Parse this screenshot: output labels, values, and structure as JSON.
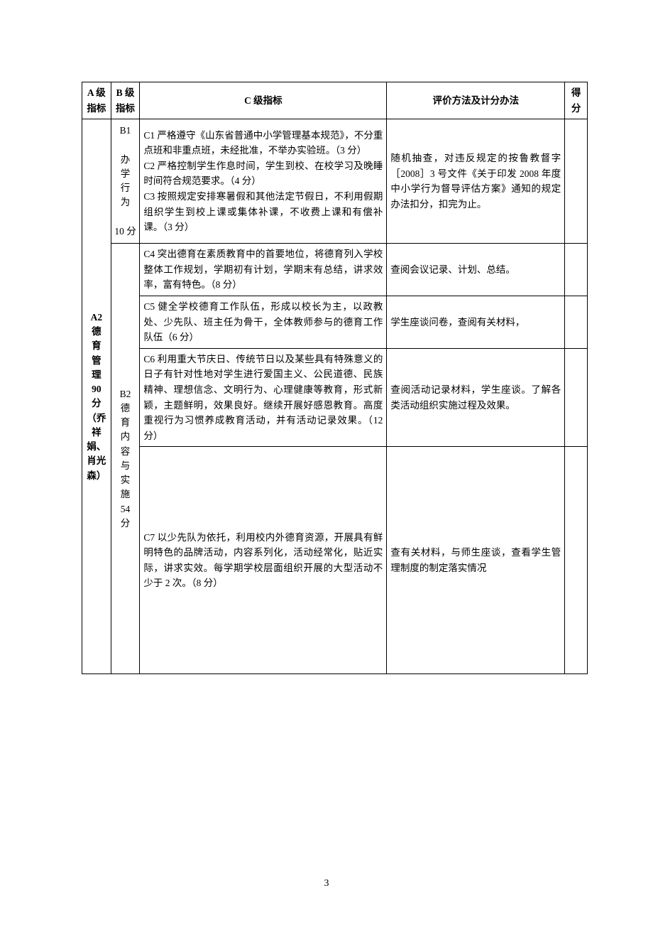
{
  "table": {
    "headers": {
      "colA": "A 级指标",
      "colB": "B 级指标",
      "colC": "C 级指标",
      "colD": "评价方法及计分办法",
      "colE": "得分"
    },
    "colA_label_lines": [
      "A2",
      "德",
      "育",
      "管",
      "理",
      "90",
      "分",
      "（乔",
      "祥娟、",
      "肖光",
      "森）"
    ],
    "colB1_lines": [
      "B1",
      "",
      "办",
      "学",
      "行",
      "为",
      "",
      "10 分"
    ],
    "colB2_lines": [
      "B2",
      "德",
      "育",
      "内",
      "容",
      "与",
      "实",
      "施",
      "54",
      "分"
    ],
    "rows": [
      {
        "c": "C1 严格遵守《山东省普通中小学管理基本规范》，不分重点班和非重点班，未经批准，不举办实验班。（3 分）\nC2 严格控制学生作息时间，学生到校、在校学习及晚睡时间符合规范要求。（4 分）\nC3 按照规定安排寒暑假和其他法定节假日，不利用假期组织学生到校上课或集体补课，不收费上课和有偿补课。（3 分）",
        "d": "随机抽查，对违反规定的按鲁教督字［2008］3 号文件《关于印发 2008 年度中小学行为督导评估方案》通知的规定办法扣分，扣完为止。"
      },
      {
        "c": "C4 突出德育在素质教育中的首要地位，将德育列入学校整体工作规划，学期初有计划，学期末有总结，讲求效率，富有特色。（8 分）",
        "d": "查阅会议记录、计划、总结。"
      },
      {
        "c": "C5 健全学校德育工作队伍，形成以校长为主，以政教处、少先队、班主任为骨干，全体教师参与的德育工作队伍（6 分）",
        "d": "学生座谈问卷，查阅有关材料，"
      },
      {
        "c": "C6 利用重大节庆日、传统节日以及某些具有特殊意义的日子有针对性地对学生进行爱国主义、公民道德、民族精神、理想信念、文明行为、心理健康等教育，形式新颖，主题鲜明，效果良好。继续开展好感恩教育。高度重视行为习惯养成教育活动，并有活动记录效果。（12 分）",
        "d": "查阅活动记录材料，学生座谈。了解各类活动组织实施过程及效果。"
      },
      {
        "c": "C7 以少先队为依托，利用校内外德育资源，开展具有鲜明特色的品牌活动，内容系列化，活动经常化，贴近实际，讲求实效。每学期学校层面组织开展的大型活动不少于 2 次。（8 分）",
        "d": "查有关材料，与师生座谈，查看学生管理制度的制定落实情况"
      }
    ]
  },
  "page_number": "3"
}
